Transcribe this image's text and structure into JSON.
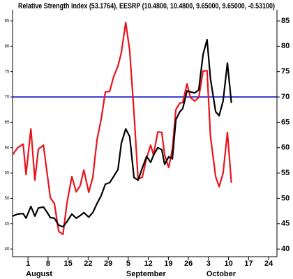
{
  "chart_data": {
    "type": "line",
    "title": "Relative Strength Index (53.1764), EESRP (10.4800, 10.4800, 9.65000, 9.65000, -0.53100)",
    "x": [
      -5.4,
      -3.6,
      -1.7,
      -0.7,
      1.0,
      2.4,
      3.6,
      5.4,
      6.6,
      7.8,
      9.2,
      10.7,
      12.2,
      13.6,
      15.3,
      16.8,
      18.2,
      19.5,
      21.2,
      22.6,
      24.1,
      25.5,
      27.0,
      28.5,
      29.9,
      31.4,
      32.6,
      34.1,
      35.5,
      37.0,
      38.4,
      39.9,
      41.4,
      42.8,
      43.8,
      45.3,
      46.7,
      47.7,
      49.1,
      50.4,
      51.6,
      53.0,
      54.0,
      55.5,
      56.7,
      58.2,
      59.6,
      61.1,
      62.5,
      63.7,
      65.5,
      66.7,
      68.1,
      69.6,
      71.0
    ],
    "series": [
      {
        "color": "#e8141c",
        "values": [
          58.6,
          60.0,
          60.7,
          54.7,
          63.7,
          53.6,
          59.7,
          60.5,
          55.2,
          50.1,
          49.0,
          43.5,
          42.9,
          49.1,
          54.3,
          51.3,
          52.5,
          55.6,
          51.2,
          54.1,
          61.6,
          65.5,
          71.0,
          71.1,
          74.0,
          76.1,
          78.8,
          84.7,
          79.2,
          66.8,
          53.8,
          54.2,
          58.0,
          60.5,
          58.6,
          63.1,
          63.0,
          58.6,
          56.1,
          59.7,
          67.5,
          68.8,
          68.9,
          72.6,
          69.9,
          69.2,
          69.9,
          75.1,
          75.2,
          62.2,
          54.3,
          52.3,
          55.0,
          63.0,
          53.1
        ]
      },
      {
        "color": "#000000",
        "values": [
          46.5,
          46.9,
          47.0,
          46.1,
          48.4,
          46.5,
          48.1,
          48.3,
          47.3,
          46.2,
          46.1,
          44.7,
          44.4,
          45.4,
          46.9,
          46.1,
          46.6,
          47.2,
          46.3,
          47.2,
          49.0,
          50.5,
          52.8,
          53.1,
          54.3,
          55.7,
          60.9,
          63.7,
          62.2,
          54.1,
          53.6,
          56.0,
          58.3,
          57.1,
          58.5,
          60.0,
          59.6,
          56.7,
          58.2,
          57.8,
          65.5,
          67.1,
          67.7,
          71.2,
          71.0,
          70.8,
          71.4,
          78.4,
          81.3,
          73.6,
          67.1,
          66.3,
          69.2,
          76.7,
          68.8
        ]
      }
    ],
    "xlim": [
      -5.4,
      86.9
    ],
    "xticks": [
      {
        "value": 0,
        "label": "1"
      },
      {
        "value": 7,
        "label": "8"
      },
      {
        "value": 14,
        "label": "15"
      },
      {
        "value": 21,
        "label": "22"
      },
      {
        "value": 28,
        "label": "29"
      },
      {
        "value": 35,
        "label": "5"
      },
      {
        "value": 42,
        "label": "12"
      },
      {
        "value": 49,
        "label": "19"
      },
      {
        "value": 56,
        "label": "26"
      },
      {
        "value": 63,
        "label": "3"
      },
      {
        "value": 70,
        "label": "10"
      },
      {
        "value": 77,
        "label": "17"
      },
      {
        "value": 84,
        "label": "24"
      }
    ],
    "month_labels": [
      {
        "value": 0,
        "label": "August"
      },
      {
        "value": 35,
        "label": "September"
      },
      {
        "value": 63,
        "label": "October"
      }
    ],
    "ylim": [
      38.5,
      87.2
    ],
    "yticks": [
      40,
      45,
      50,
      55,
      60,
      65,
      70,
      75,
      80,
      85
    ],
    "reference_line": {
      "value": 70,
      "color": "#0000cc"
    }
  }
}
